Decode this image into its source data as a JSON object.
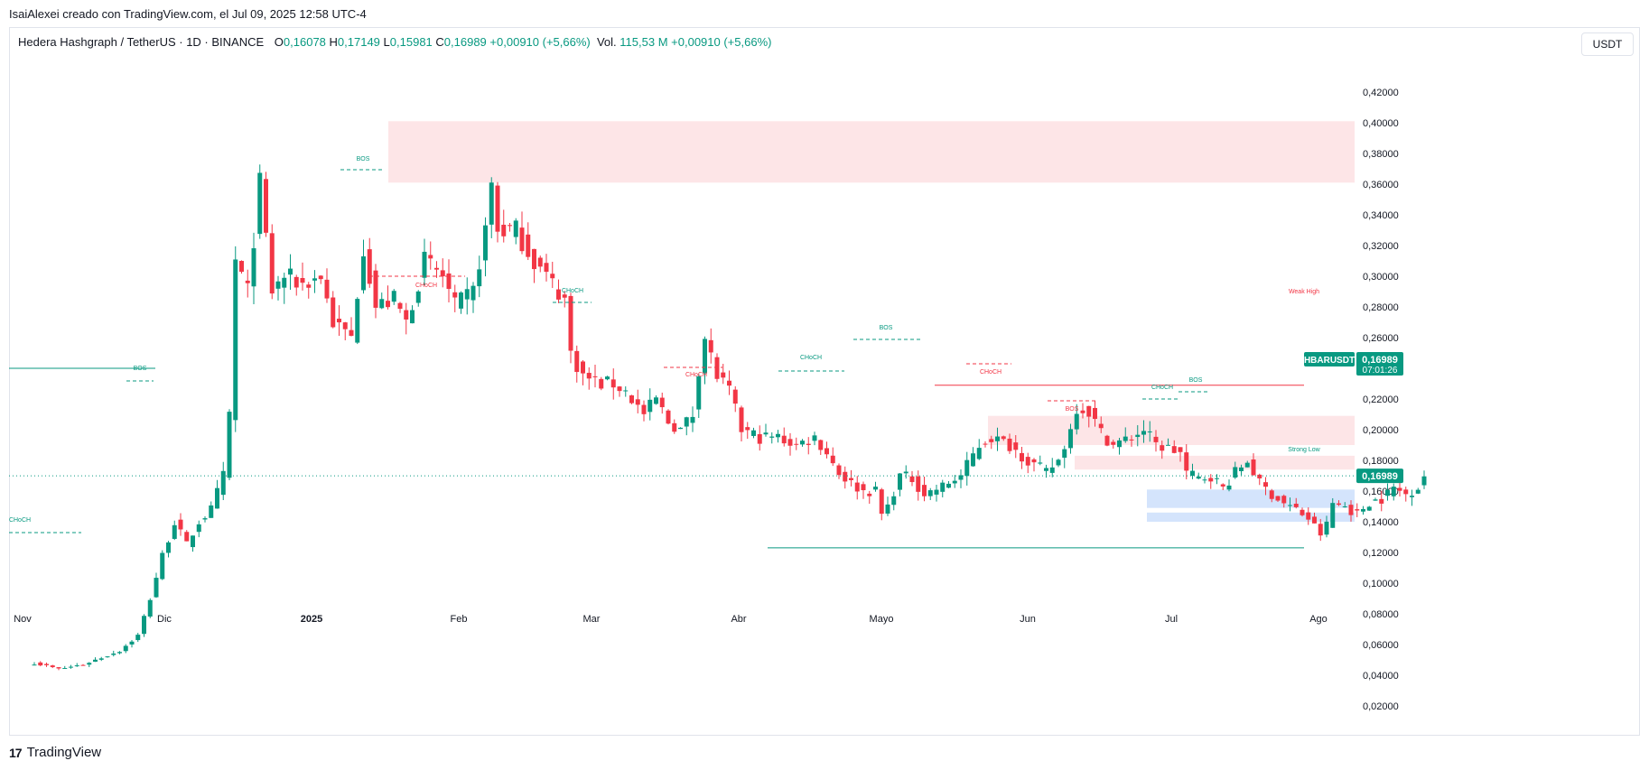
{
  "header": {
    "attribution": "IsaiAlexei creado con TradingView.com, el Jul 09, 2025 12:58 UTC-4"
  },
  "legend": {
    "symbol": "Hedera Hashgraph / TetherUS · 1D · BINANCE",
    "o_label": "O",
    "o_value": "0,16078",
    "h_label": "H",
    "h_value": "0,17149",
    "l_label": "L",
    "l_value": "0,15981",
    "c_label": "C",
    "c_value": "0,16989",
    "change": "+0,00910 (+5,66%)",
    "vol_label": "Vol.",
    "vol_value": "115,53 M",
    "vol_change": "+0,00910 (+5,66%)"
  },
  "currency_button": "USDT",
  "footer": {
    "brand": "TradingView",
    "logo_text": "17"
  },
  "colors": {
    "up": "#089981",
    "down": "#f23645",
    "supply_zone": "#fde2e4",
    "demand_zone": "#d2e3fc",
    "price_line": "#089981"
  },
  "chart_data": {
    "type": "candlestick",
    "symbol": "HBARUSDT",
    "timeframe": "1D",
    "x_labels": [
      "Nov",
      "Dic",
      "2025",
      "Feb",
      "Mar",
      "Abr",
      "Mayo",
      "Jun",
      "Jul",
      "Ago"
    ],
    "y_ticks": [
      "0,42000",
      "0,40000",
      "0,38000",
      "0,36000",
      "0,34000",
      "0,32000",
      "0,30000",
      "0,28000",
      "0,26000",
      "0,24000",
      "0,22000",
      "0,20000",
      "0,18000",
      "0,16000",
      "0,14000",
      "0,12000",
      "0,10000",
      "0,08000",
      "0,06000",
      "0,04000",
      "0,02000"
    ],
    "ylim": [
      0.0,
      0.42
    ],
    "last_price_label": "0,16989",
    "last_price": 0.16989,
    "countdown": "07:01:26",
    "symbol_tag": "HBARUSDT",
    "series": [
      {
        "name": "HBARUSDT",
        "keypoints": [
          {
            "x": 0,
            "y": 0.048
          },
          {
            "x": 4,
            "y": 0.044
          },
          {
            "x": 8,
            "y": 0.047
          },
          {
            "x": 14,
            "y": 0.056
          },
          {
            "x": 17,
            "y": 0.066
          },
          {
            "x": 19,
            "y": 0.09
          },
          {
            "x": 21,
            "y": 0.118
          },
          {
            "x": 23,
            "y": 0.14
          },
          {
            "x": 25,
            "y": 0.125
          },
          {
            "x": 27,
            "y": 0.14
          },
          {
            "x": 29,
            "y": 0.148
          },
          {
            "x": 31,
            "y": 0.17
          },
          {
            "x": 32,
            "y": 0.21
          },
          {
            "x": 33,
            "y": 0.31
          },
          {
            "x": 35,
            "y": 0.29
          },
          {
            "x": 37,
            "y": 0.36
          },
          {
            "x": 39,
            "y": 0.29
          },
          {
            "x": 41,
            "y": 0.3
          },
          {
            "x": 44,
            "y": 0.295
          },
          {
            "x": 47,
            "y": 0.3
          },
          {
            "x": 49,
            "y": 0.27
          },
          {
            "x": 52,
            "y": 0.26
          },
          {
            "x": 54,
            "y": 0.32
          },
          {
            "x": 56,
            "y": 0.28
          },
          {
            "x": 59,
            "y": 0.285
          },
          {
            "x": 61,
            "y": 0.27
          },
          {
            "x": 64,
            "y": 0.31
          },
          {
            "x": 67,
            "y": 0.3
          },
          {
            "x": 69,
            "y": 0.28
          },
          {
            "x": 72,
            "y": 0.29
          },
          {
            "x": 74,
            "y": 0.33
          },
          {
            "x": 75,
            "y": 0.36
          },
          {
            "x": 76,
            "y": 0.33
          },
          {
            "x": 79,
            "y": 0.33
          },
          {
            "x": 82,
            "y": 0.31
          },
          {
            "x": 84,
            "y": 0.3
          },
          {
            "x": 87,
            "y": 0.285
          },
          {
            "x": 88,
            "y": 0.25
          },
          {
            "x": 90,
            "y": 0.235
          },
          {
            "x": 93,
            "y": 0.23
          },
          {
            "x": 95,
            "y": 0.23
          },
          {
            "x": 97,
            "y": 0.225
          },
          {
            "x": 100,
            "y": 0.21
          },
          {
            "x": 102,
            "y": 0.22
          },
          {
            "x": 104,
            "y": 0.205
          },
          {
            "x": 106,
            "y": 0.2
          },
          {
            "x": 108,
            "y": 0.21
          },
          {
            "x": 109,
            "y": 0.24
          },
          {
            "x": 110,
            "y": 0.26
          },
          {
            "x": 112,
            "y": 0.235
          },
          {
            "x": 114,
            "y": 0.225
          },
          {
            "x": 116,
            "y": 0.2
          },
          {
            "x": 119,
            "y": 0.195
          },
          {
            "x": 122,
            "y": 0.195
          },
          {
            "x": 125,
            "y": 0.19
          },
          {
            "x": 128,
            "y": 0.195
          },
          {
            "x": 130,
            "y": 0.185
          },
          {
            "x": 132,
            "y": 0.172
          },
          {
            "x": 134,
            "y": 0.165
          },
          {
            "x": 136,
            "y": 0.16
          },
          {
            "x": 138,
            "y": 0.16
          },
          {
            "x": 139,
            "y": 0.145
          },
          {
            "x": 140,
            "y": 0.15
          },
          {
            "x": 142,
            "y": 0.17
          },
          {
            "x": 144,
            "y": 0.168
          },
          {
            "x": 146,
            "y": 0.158
          },
          {
            "x": 149,
            "y": 0.163
          },
          {
            "x": 152,
            "y": 0.17
          },
          {
            "x": 155,
            "y": 0.19
          },
          {
            "x": 157,
            "y": 0.195
          },
          {
            "x": 160,
            "y": 0.19
          },
          {
            "x": 163,
            "y": 0.18
          },
          {
            "x": 166,
            "y": 0.172
          },
          {
            "x": 168,
            "y": 0.18
          },
          {
            "x": 170,
            "y": 0.2
          },
          {
            "x": 171,
            "y": 0.215
          },
          {
            "x": 173,
            "y": 0.212
          },
          {
            "x": 175,
            "y": 0.198
          },
          {
            "x": 177,
            "y": 0.19
          },
          {
            "x": 180,
            "y": 0.195
          },
          {
            "x": 182,
            "y": 0.2
          },
          {
            "x": 184,
            "y": 0.19
          },
          {
            "x": 186,
            "y": 0.188
          },
          {
            "x": 188,
            "y": 0.185
          },
          {
            "x": 189,
            "y": 0.172
          },
          {
            "x": 191,
            "y": 0.168
          },
          {
            "x": 193,
            "y": 0.17
          },
          {
            "x": 195,
            "y": 0.162
          },
          {
            "x": 197,
            "y": 0.172
          },
          {
            "x": 199,
            "y": 0.18
          },
          {
            "x": 201,
            "y": 0.165
          },
          {
            "x": 203,
            "y": 0.158
          },
          {
            "x": 205,
            "y": 0.152
          },
          {
            "x": 207,
            "y": 0.148
          },
          {
            "x": 209,
            "y": 0.142
          },
          {
            "x": 211,
            "y": 0.132
          },
          {
            "x": 212,
            "y": 0.138
          },
          {
            "x": 213,
            "y": 0.152
          },
          {
            "x": 215,
            "y": 0.15
          },
          {
            "x": 217,
            "y": 0.145
          },
          {
            "x": 219,
            "y": 0.153
          },
          {
            "x": 221,
            "y": 0.155
          },
          {
            "x": 223,
            "y": 0.162
          },
          {
            "x": 225,
            "y": 0.158
          },
          {
            "x": 227,
            "y": 0.163
          },
          {
            "x": 228,
            "y": 0.17
          }
        ]
      }
    ],
    "annotations": [
      {
        "text": "CHoCH",
        "color": "#089981"
      },
      {
        "text": "BOS",
        "color": "#089981"
      },
      {
        "text": "BOS",
        "color": "#089981"
      },
      {
        "text": "CHoCH",
        "color": "#f23645"
      },
      {
        "text": "CHoCH",
        "color": "#089981"
      },
      {
        "text": "CHoCH",
        "color": "#f23645"
      },
      {
        "text": "CHoCH",
        "color": "#089981"
      },
      {
        "text": "BOS",
        "color": "#089981"
      },
      {
        "text": "CHoCH",
        "color": "#f23645"
      },
      {
        "text": "BOS",
        "color": "#f23645"
      },
      {
        "text": "CHoCH",
        "color": "#089981"
      },
      {
        "text": "BOS",
        "color": "#089981"
      },
      {
        "text": "Weak High",
        "color": "#f23645"
      },
      {
        "text": "Strong Low",
        "color": "#089981"
      }
    ],
    "zones": [
      {
        "kind": "supply",
        "y_range": [
          0.361,
          0.401
        ]
      },
      {
        "kind": "supply",
        "y_range": [
          0.19,
          0.209
        ]
      },
      {
        "kind": "supply",
        "y_range": [
          0.174,
          0.183
        ]
      },
      {
        "kind": "demand",
        "y_range": [
          0.149,
          0.161
        ]
      },
      {
        "kind": "demand",
        "y_range": [
          0.14,
          0.146
        ]
      }
    ],
    "levels": [
      {
        "name": "Weak High",
        "y": 0.229
      },
      {
        "name": "Strong Low",
        "y": 0.123
      }
    ]
  }
}
